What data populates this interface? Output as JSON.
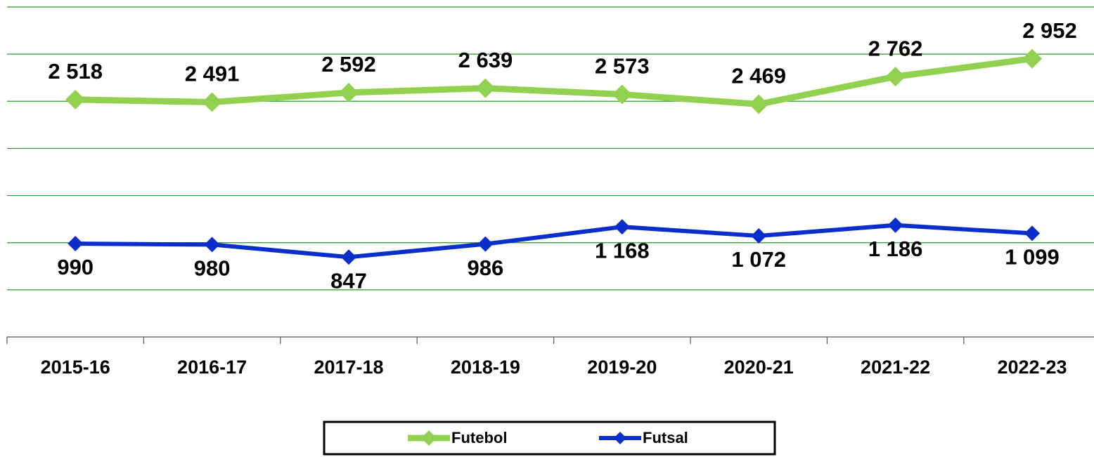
{
  "chart_data": {
    "type": "line",
    "categories": [
      "2015-16",
      "2016-17",
      "2017-18",
      "2018-19",
      "2019-20",
      "2020-21",
      "2021-22",
      "2022-23"
    ],
    "series": [
      {
        "name": "Futebol",
        "color": "#92d050",
        "values": [
          2518,
          2491,
          2592,
          2639,
          2573,
          2469,
          2762,
          2952
        ],
        "value_labels": [
          "2 518",
          "2 491",
          "2 592",
          "2 639",
          "2 573",
          "2 469",
          "2 762",
          "2 952"
        ]
      },
      {
        "name": "Futsal",
        "color": "#0a2ecb",
        "values": [
          990,
          980,
          847,
          986,
          1168,
          1072,
          1186,
          1099
        ],
        "value_labels": [
          "990",
          "980",
          "847",
          "986",
          "1 168",
          "1 072",
          "1 186",
          "1 099"
        ]
      }
    ],
    "ylim": [
      0,
      3500
    ],
    "yticks": [
      0,
      500,
      1000,
      1500,
      2000,
      2500,
      3000,
      3500
    ],
    "grid": true,
    "legend": "bottom"
  }
}
